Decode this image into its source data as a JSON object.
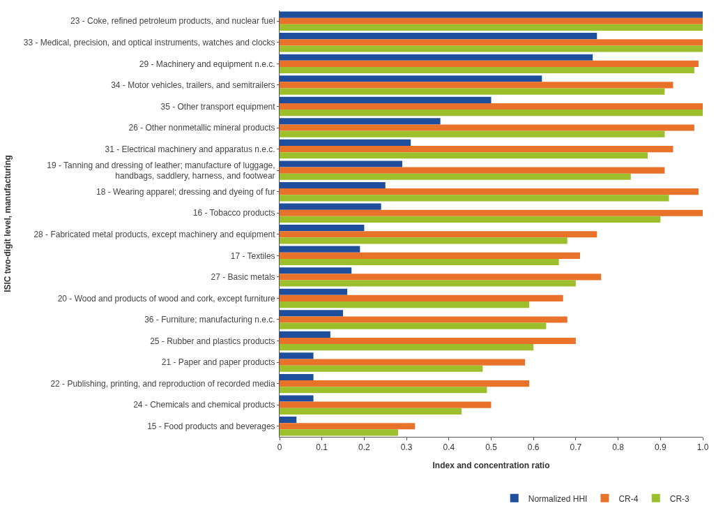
{
  "chart_data": {
    "type": "bar",
    "orientation": "horizontal",
    "xlabel": "Index and concentration ratio",
    "ylabel": "ISIC two-digit level, manufacturing",
    "categories": [
      "23 - Coke, refined petroleum products, and nuclear fuel",
      "33 - Medical, precision, and optical instruments, watches and clocks",
      "29 - Machinery and equipment n.e.c.",
      "34 - Motor vehicles, trailers, and semitrailers",
      "35 - Other transport equipment",
      "26 - Other nonmetallic mineral products",
      "31 - Electrical machinery and apparatus n.e.c.",
      "19 - Tanning and dressing of leather; manufacture of luggage,\nhandbags, saddlery, harness, and footwear",
      "18 - Wearing apparel; dressing and dyeing of fur",
      "16 - Tobacco products",
      "28 - Fabricated metal products, except machinery and equipment",
      "17 - Textiles",
      "27 - Basic metals",
      "20 - Wood and products of wood and cork, except furniture",
      "36 - Furniture; manufacturing n.e.c.",
      "25 - Rubber and plastics products",
      "21 - Paper and paper products",
      "22 - Publishing, printing, and reproduction of recorded media",
      "24 - Chemicals and chemical products",
      "15 - Food products and beverages"
    ],
    "series": [
      {
        "name": "Normalized HHI",
        "color": "#1f4e9c",
        "values": [
          1.0,
          0.75,
          0.74,
          0.62,
          0.5,
          0.38,
          0.31,
          0.29,
          0.25,
          0.24,
          0.2,
          0.19,
          0.17,
          0.16,
          0.15,
          0.12,
          0.08,
          0.08,
          0.08,
          0.04
        ]
      },
      {
        "name": "CR-4",
        "color": "#e8722a",
        "values": [
          1.0,
          1.0,
          0.99,
          0.93,
          1.0,
          0.98,
          0.93,
          0.91,
          0.99,
          1.0,
          0.75,
          0.71,
          0.76,
          0.67,
          0.68,
          0.7,
          0.58,
          0.59,
          0.5,
          0.32
        ]
      },
      {
        "name": "CR-3",
        "color": "#9cbf2b",
        "values": [
          1.0,
          1.0,
          0.98,
          0.91,
          1.0,
          0.91,
          0.87,
          0.83,
          0.92,
          0.9,
          0.68,
          0.66,
          0.7,
          0.59,
          0.63,
          0.6,
          0.48,
          0.49,
          0.43,
          0.28
        ]
      }
    ],
    "xlim": [
      0,
      1
    ],
    "xticks": [
      0,
      0.1,
      0.2,
      0.3,
      0.4,
      0.5,
      0.6,
      0.7,
      0.8,
      0.9,
      {
        "value": 1,
        "label": "1.0"
      }
    ],
    "grid": false,
    "legend": "bottom"
  }
}
